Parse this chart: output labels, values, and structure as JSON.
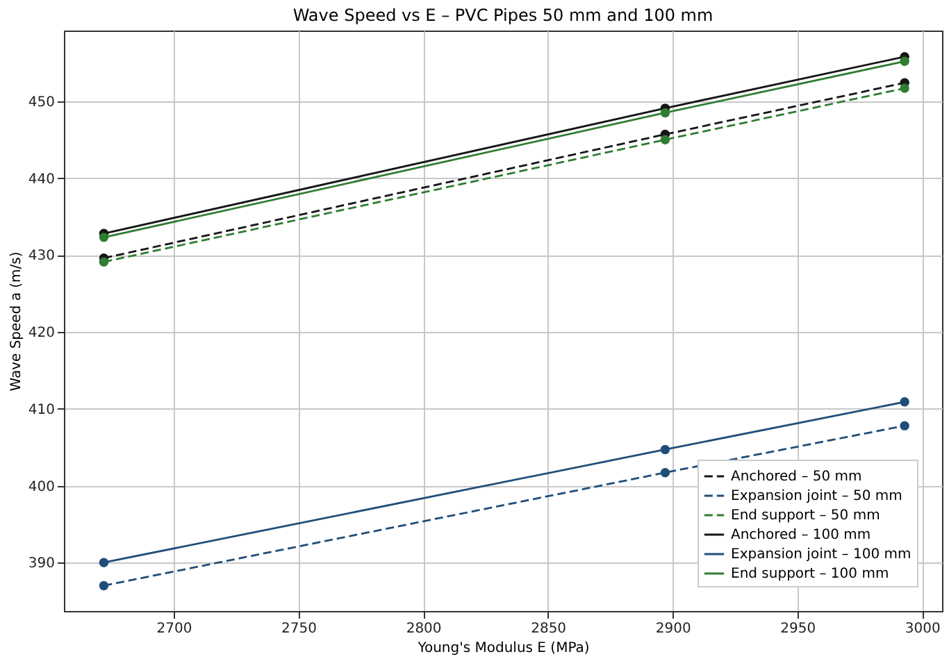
{
  "chart_data": {
    "type": "line",
    "title": "Wave Speed vs E – PVC Pipes 50 mm and 100 mm",
    "xlabel": "Young's Modulus E (MPa)",
    "ylabel": "Wave Speed a (m/s)",
    "x": [
      2672,
      2897,
      2993
    ],
    "series": [
      {
        "name": "Anchored – 50 mm",
        "color": "#151515",
        "line_style": "dashed",
        "values": [
          429.6,
          445.7,
          452.4
        ]
      },
      {
        "name": "Expansion joint – 50 mm",
        "color": "#1f4e79",
        "line_style": "dashed",
        "values": [
          387.0,
          401.7,
          407.8
        ]
      },
      {
        "name": "End support – 50 mm",
        "color": "#2e7d32",
        "line_style": "dashed",
        "values": [
          429.1,
          445.0,
          451.7
        ]
      },
      {
        "name": "Anchored – 100 mm",
        "color": "#151515",
        "line_style": "solid",
        "values": [
          432.8,
          449.1,
          455.8
        ]
      },
      {
        "name": "Expansion joint – 100 mm",
        "color": "#1f4e79",
        "line_style": "solid",
        "values": [
          390.0,
          404.7,
          410.9
        ]
      },
      {
        "name": "End support – 100 mm",
        "color": "#2e7d32",
        "line_style": "solid",
        "values": [
          432.3,
          448.5,
          455.2
        ]
      }
    ],
    "xlim": [
      2656,
      3008
    ],
    "xticks": [
      2700,
      2750,
      2800,
      2850,
      2900,
      2950,
      3000
    ],
    "ylim": [
      383.7,
      459.2
    ],
    "yticks": [
      390,
      400,
      410,
      420,
      430,
      440,
      450
    ],
    "grid": true,
    "legend": "bottom right",
    "marker": "circle"
  }
}
